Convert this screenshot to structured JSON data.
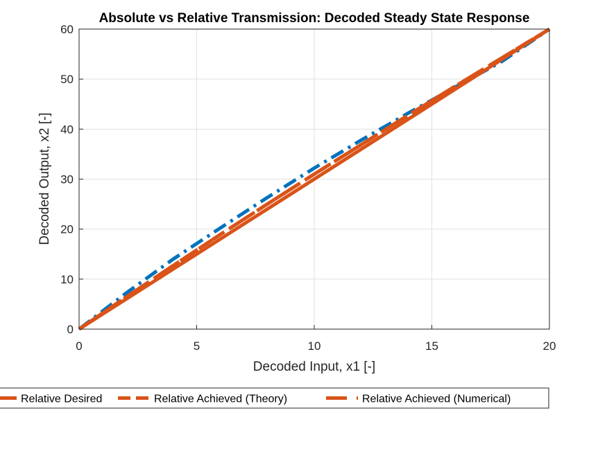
{
  "chart_data": {
    "type": "line",
    "title": "Absolute vs Relative Transmission: Decoded Steady State Response",
    "xlabel": "Decoded Input, x1 [-]",
    "ylabel": "Decoded Output, x2 [-]",
    "xlim": [
      0,
      20
    ],
    "ylim": [
      0,
      60
    ],
    "xticks": [
      0,
      5,
      10,
      15,
      20
    ],
    "yticks": [
      0,
      10,
      20,
      30,
      40,
      50,
      60
    ],
    "grid": true,
    "legend_position": "bottom",
    "series": [
      {
        "style": "dashdot",
        "color": "#0072BD",
        "x": [
          0,
          2,
          4,
          6,
          8,
          10,
          12,
          14,
          16,
          18,
          20
        ],
        "y": [
          0,
          7.2,
          14.0,
          20.2,
          26.3,
          32.2,
          37.8,
          43.2,
          48.4,
          53.6,
          60
        ]
      },
      {
        "name": "Relative Desired",
        "style": "solid",
        "color": "#D95319",
        "x": [
          0,
          20
        ],
        "y": [
          0,
          60
        ]
      },
      {
        "name": "Relative Achieved (Theory)",
        "style": "dashed",
        "color": "#D95319",
        "x": [
          0,
          2,
          4,
          6,
          8,
          10,
          12,
          14,
          16,
          18,
          20
        ],
        "y": [
          0,
          6.4,
          12.7,
          18.9,
          25.0,
          31.0,
          36.9,
          42.8,
          48.6,
          54.3,
          60
        ]
      },
      {
        "name": "Relative Achieved (Numerical)",
        "style": "longdash",
        "color": "#D95319",
        "x": [
          0,
          2,
          4,
          6,
          8,
          10,
          12,
          14,
          16,
          18,
          20
        ],
        "y": [
          0,
          6.4,
          12.7,
          18.9,
          25.0,
          31.0,
          36.9,
          42.8,
          48.6,
          54.3,
          60
        ]
      }
    ]
  }
}
